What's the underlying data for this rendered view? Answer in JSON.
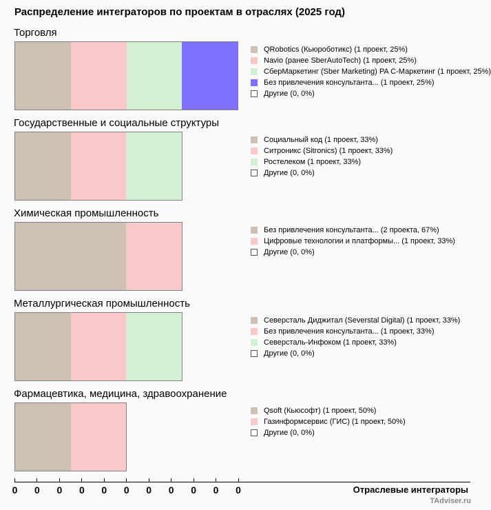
{
  "chart_data": {
    "type": "bar",
    "orientation": "horizontal-stacked",
    "title": "Распределение интеграторов по проектам в отраслях (2025 год)",
    "xlabel": "Отраслевые интеграторы",
    "tick_labels": [
      "0",
      "0",
      "0",
      "0",
      "0",
      "0",
      "0",
      "0",
      "0",
      "0",
      "0"
    ],
    "xlim": [
      0,
      10
    ],
    "units_per_tick": 0.4,
    "colors": [
      "#cdc1b4",
      "#f9c8c8",
      "#d3f0d3",
      "#8070ff"
    ],
    "other_color": "#ffffff",
    "groups": [
      {
        "name": "Торговля",
        "segments": [
          {
            "label": "QRobotics (Кьюроботикс) (1 проект, 25%)",
            "value": 1
          },
          {
            "label": "Navio (ранее SberAutoTech) (1 проект, 25%)",
            "value": 1
          },
          {
            "label": "СберМаркетинг (Sber Marketing) PA C-Маркетинг (1 проект, 25%)",
            "value": 1
          },
          {
            "label": "Без привлечения консультанта... (1 проект, 25%)",
            "value": 1
          }
        ],
        "other": "Другие (0, 0%)"
      },
      {
        "name": "Государственные и социальные структуры",
        "segments": [
          {
            "label": "Социальный код (1 проект, 33%)",
            "value": 1
          },
          {
            "label": "Ситроникс (Sitronics) (1 проект, 33%)",
            "value": 1
          },
          {
            "label": "Ростелеком (1 проект, 33%)",
            "value": 1
          }
        ],
        "other": "Другие (0, 0%)"
      },
      {
        "name": "Химическая промышленность",
        "segments": [
          {
            "label": "Без привлечения консультанта... (2 проекта, 67%)",
            "value": 2
          },
          {
            "label": "Цифровые технологии и платформы... (1 проект, 33%)",
            "value": 1
          }
        ],
        "other": "Другие (0, 0%)"
      },
      {
        "name": "Металлургическая промышленность",
        "segments": [
          {
            "label": "Северсталь Диджитал (Severstal Digital) (1 проект, 33%)",
            "value": 1
          },
          {
            "label": "Без привлечения консультанта... (1 проект, 33%)",
            "value": 1
          },
          {
            "label": "Северсталь-Инфоком (1 проект, 33%)",
            "value": 1
          }
        ],
        "other": "Другие (0, 0%)"
      },
      {
        "name": "Фармацевтика, медицина, здравоохранение",
        "segments": [
          {
            "label": "Qsoft (Кьюсофт) (1 проект, 50%)",
            "value": 1
          },
          {
            "label": "Газинформсервис (ГИС) (1 проект, 50%)",
            "value": 1
          }
        ],
        "other": "Другие (0, 0%)"
      }
    ]
  },
  "footer": {
    "credit": "TAdviser.ru"
  }
}
